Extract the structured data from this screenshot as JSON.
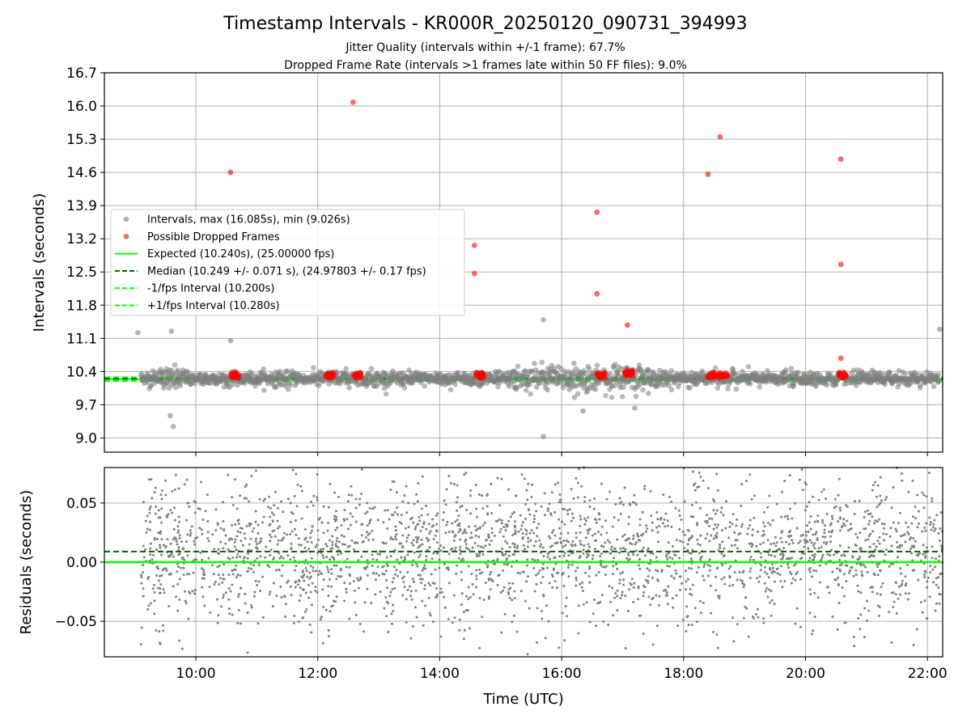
{
  "chart_data": [
    {
      "type": "scatter",
      "title": "Timestamp Intervals - KR000R_20250120_090731_394993",
      "subtitle_lines": [
        "Jitter Quality (intervals within +/-1 frame): 67.7%",
        "Dropped Frame Rate (intervals >1 frames late within 50 FF files): 9.0%"
      ],
      "ylabel": "Intervals (seconds)",
      "xlim_hours": [
        8.5,
        22.25
      ],
      "ylim": [
        8.7,
        16.7
      ],
      "yticks": [
        9.0,
        9.7,
        10.4,
        11.1,
        11.8,
        12.5,
        13.2,
        13.9,
        14.6,
        15.3,
        16.0,
        16.7
      ],
      "ytick_labels": [
        "9.0",
        "9.7",
        "10.4",
        "11.1",
        "11.8",
        "12.5",
        "13.2",
        "13.9",
        "14.6",
        "15.3",
        "16.0",
        "16.7"
      ],
      "grid": true,
      "legend_location": "center-left",
      "expected_interval": 10.24,
      "median_interval": 10.249,
      "minus_one_fps_interval": 10.2,
      "plus_one_fps_interval": 10.28,
      "max_interval": 16.085,
      "min_interval": 9.026,
      "interval_cloud_center": 10.25,
      "series": [
        {
          "name": "Intervals, max (16.085s), min (9.026s)",
          "kind": "points",
          "color": "#808080"
        },
        {
          "name": "Possible Dropped Frames",
          "kind": "points",
          "color": "#ff0000"
        },
        {
          "name": "Expected (10.240s), (25.00000 fps)",
          "kind": "hline",
          "color": "#00ff00",
          "style": "solid"
        },
        {
          "name": "Median (10.249 +/- 0.071 s), (24.97803 +/- 0.17 fps)",
          "kind": "hline",
          "color": "#006400",
          "style": "dashed"
        },
        {
          "name": "-1/fps Interval (10.200s)",
          "kind": "hline",
          "color": "#00ff00",
          "style": "dashed"
        },
        {
          "name": "+1/fps Interval (10.280s)",
          "kind": "hline",
          "color": "#00ff00",
          "style": "dashed"
        }
      ],
      "dropped_frame_clusters": [
        {
          "x": 10.65,
          "y": 10.3
        },
        {
          "x": 12.2,
          "y": 10.3
        },
        {
          "x": 12.65,
          "y": 10.3
        },
        {
          "x": 14.65,
          "y": 10.3
        },
        {
          "x": 16.65,
          "y": 10.3
        },
        {
          "x": 17.1,
          "y": 10.35
        },
        {
          "x": 18.45,
          "y": 10.3
        },
        {
          "x": 18.65,
          "y": 10.3
        },
        {
          "x": 20.6,
          "y": 10.3
        }
      ],
      "dropped_frame_outliers": [
        {
          "x": 10.57,
          "y": 14.6
        },
        {
          "x": 12.58,
          "y": 16.08
        },
        {
          "x": 14.57,
          "y": 13.06
        },
        {
          "x": 14.57,
          "y": 12.47
        },
        {
          "x": 16.58,
          "y": 13.76
        },
        {
          "x": 16.58,
          "y": 12.04
        },
        {
          "x": 17.08,
          "y": 11.38
        },
        {
          "x": 18.4,
          "y": 14.56
        },
        {
          "x": 18.6,
          "y": 15.35
        },
        {
          "x": 20.58,
          "y": 14.88
        },
        {
          "x": 20.58,
          "y": 12.66
        },
        {
          "x": 20.58,
          "y": 10.68
        }
      ],
      "interval_outliers": [
        {
          "x": 9.05,
          "y": 11.22
        },
        {
          "x": 9.6,
          "y": 11.25
        },
        {
          "x": 9.58,
          "y": 9.47
        },
        {
          "x": 9.63,
          "y": 9.24
        },
        {
          "x": 10.57,
          "y": 11.05
        },
        {
          "x": 15.7,
          "y": 11.49
        },
        {
          "x": 15.7,
          "y": 9.03
        },
        {
          "x": 16.35,
          "y": 9.57
        },
        {
          "x": 22.2,
          "y": 11.29
        },
        {
          "x": 17.2,
          "y": 9.63
        }
      ]
    },
    {
      "type": "scatter",
      "ylabel": "Residuals (seconds)",
      "xlabel": "Time (UTC)",
      "xlim_hours": [
        8.5,
        22.25
      ],
      "ylim": [
        -0.08,
        0.08
      ],
      "yticks": [
        -0.05,
        0.0,
        0.05
      ],
      "ytick_labels": [
        "−0.05",
        "0.00",
        "0.05"
      ],
      "xticks_hours": [
        10,
        12,
        14,
        16,
        18,
        20,
        22
      ],
      "xtick_labels": [
        "10:00",
        "12:00",
        "14:00",
        "16:00",
        "18:00",
        "20:00",
        "22:00"
      ],
      "grid": true,
      "zero_line": 0.0,
      "median_offset": 0.009,
      "data_start_hour": 9.1,
      "data_end_hour": 22.25,
      "residual_spread": 0.03,
      "series": [
        {
          "name": "",
          "kind": "points",
          "color": "#808080"
        },
        {
          "name": "",
          "kind": "hline",
          "color": "#00ff00",
          "style": "solid"
        },
        {
          "name": "",
          "kind": "hline",
          "color": "#006400",
          "style": "dashed"
        }
      ]
    }
  ]
}
